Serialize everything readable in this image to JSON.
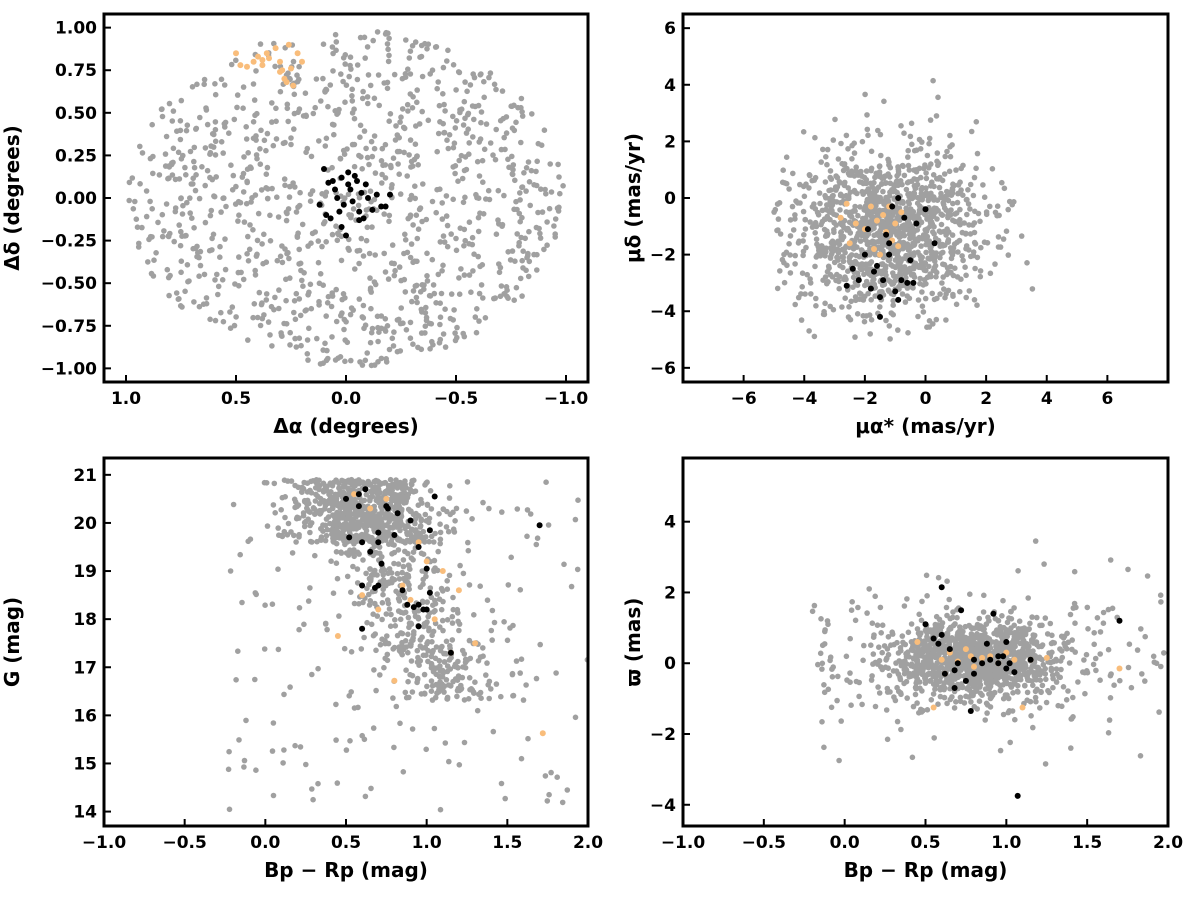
{
  "colors": {
    "field": "#a0a0a0",
    "member": "#000000",
    "group": "#f9bd7b"
  },
  "chart_data": [
    {
      "type": "scatter",
      "id": "sky",
      "xlabel": "Δα (degrees)",
      "ylabel": "Δδ (degrees)",
      "xlim": [
        1.1,
        -1.1
      ],
      "ylim": [
        -1.08,
        1.08
      ],
      "xticks": [
        1.0,
        0.5,
        0.0,
        -0.5,
        -1.0
      ],
      "xtick_labels": [
        "1.0",
        "0.5",
        "0.0",
        "−0.5",
        "−1.0"
      ],
      "yticks": [
        -1.0,
        -0.75,
        -0.5,
        -0.25,
        0.0,
        0.25,
        0.5,
        0.75,
        1.0
      ],
      "ytick_labels": [
        "−1.00",
        "−0.75",
        "−0.50",
        "−0.25",
        "0.00",
        "0.25",
        "0.50",
        "0.75",
        "1.00"
      ],
      "grid": false,
      "field_cloud": {
        "shape": "disk",
        "center": [
          0.0,
          0.0
        ],
        "radius": [
          0.99,
          0.99
        ],
        "count": 1100,
        "seed": 11
      },
      "series": [
        {
          "role": "group",
          "points": [
            [
              0.5,
              0.85
            ],
            [
              0.48,
              0.78
            ],
            [
              0.45,
              0.77
            ],
            [
              0.42,
              0.8
            ],
            [
              0.4,
              0.83
            ],
            [
              0.38,
              0.78
            ],
            [
              0.36,
              0.85
            ],
            [
              0.35,
              0.82
            ],
            [
              0.32,
              0.88
            ],
            [
              0.3,
              0.8
            ],
            [
              0.3,
              0.74
            ],
            [
              0.28,
              0.7
            ],
            [
              0.27,
              0.68
            ],
            [
              0.26,
              0.9
            ],
            [
              0.25,
              0.76
            ],
            [
              0.24,
              0.66
            ],
            [
              0.22,
              0.85
            ],
            [
              0.2,
              0.8
            ],
            [
              0.38,
              0.81
            ],
            [
              0.29,
              0.75
            ]
          ]
        },
        {
          "role": "member",
          "points": [
            [
              0.1,
              0.17
            ],
            [
              0.08,
              0.09
            ],
            [
              0.06,
              0.1
            ],
            [
              0.05,
              0.05
            ],
            [
              0.04,
              0.0
            ],
            [
              0.02,
              0.12
            ],
            [
              0.01,
              -0.04
            ],
            [
              -0.01,
              0.15
            ],
            [
              -0.02,
              0.05
            ],
            [
              -0.03,
              -0.02
            ],
            [
              -0.05,
              0.1
            ],
            [
              -0.06,
              -0.08
            ],
            [
              -0.07,
              0.03
            ],
            [
              -0.08,
              -0.12
            ],
            [
              -0.1,
              0.0
            ],
            [
              -0.12,
              -0.07
            ],
            [
              -0.14,
              0.02
            ],
            [
              -0.16,
              -0.05
            ],
            [
              -0.18,
              -0.05
            ],
            [
              -0.2,
              0.02
            ],
            [
              0.12,
              -0.04
            ],
            [
              0.09,
              -0.1
            ],
            [
              0.07,
              -0.12
            ],
            [
              0.03,
              -0.08
            ],
            [
              0.0,
              -0.22
            ],
            [
              -0.01,
              0.08
            ],
            [
              -0.04,
              0.13
            ],
            [
              0.02,
              -0.17
            ],
            [
              -0.06,
              -0.13
            ],
            [
              -0.09,
              0.08
            ]
          ]
        }
      ]
    },
    {
      "type": "scatter",
      "id": "proper-motion",
      "xlabel": "μα* (mas/yr)",
      "ylabel": "μδ (mas/yr)",
      "xlim": [
        -8.0,
        8.0
      ],
      "ylim": [
        -6.5,
        6.5
      ],
      "xticks": [
        -6,
        -4,
        -2,
        0,
        2,
        4,
        6
      ],
      "xtick_labels": [
        "−6",
        "−4",
        "−2",
        "0",
        "2",
        "4",
        "6"
      ],
      "yticks": [
        -6,
        -4,
        -2,
        0,
        2,
        4,
        6
      ],
      "ytick_labels": [
        "−6",
        "−4",
        "−2",
        "0",
        "2",
        "4",
        "6"
      ],
      "grid": false,
      "field_cloud": {
        "shape": "gauss-clipped",
        "center": [
          -1.3,
          -1.2
        ],
        "spread": [
          1.6,
          1.5
        ],
        "clip": [
          [
            -5.0,
            4.7
          ],
          [
            -5.0,
            4.7
          ]
        ],
        "count": 1300,
        "seed": 23
      },
      "series": [
        {
          "role": "group",
          "points": [
            [
              -2.8,
              -0.7
            ],
            [
              -2.6,
              -0.2
            ],
            [
              -2.3,
              -0.9
            ],
            [
              -2.0,
              -1.1
            ],
            [
              -1.8,
              -0.3
            ],
            [
              -1.6,
              -0.8
            ],
            [
              -1.4,
              -0.6
            ],
            [
              -1.3,
              -1.2
            ],
            [
              -1.2,
              -0.3
            ],
            [
              -1.1,
              -1.5
            ],
            [
              -1.0,
              -0.9
            ],
            [
              -0.9,
              -1.7
            ],
            [
              -2.5,
              -1.6
            ],
            [
              -1.7,
              -1.8
            ],
            [
              -0.8,
              -0.5
            ],
            [
              -1.5,
              -2.0
            ]
          ]
        },
        {
          "role": "member",
          "points": [
            [
              -2.6,
              -3.1
            ],
            [
              -2.4,
              -2.5
            ],
            [
              -2.2,
              -2.9
            ],
            [
              -2.0,
              -2.0
            ],
            [
              -1.8,
              -3.2
            ],
            [
              -1.7,
              -2.6
            ],
            [
              -1.6,
              -2.4
            ],
            [
              -1.5,
              -3.5
            ],
            [
              -1.5,
              -4.2
            ],
            [
              -1.4,
              -2.9
            ],
            [
              -1.3,
              -1.3
            ],
            [
              -1.2,
              -1.6
            ],
            [
              -1.1,
              -0.3
            ],
            [
              -1.0,
              -3.3
            ],
            [
              -0.9,
              -3.6
            ],
            [
              -0.8,
              -2.9
            ],
            [
              -0.7,
              -0.7
            ],
            [
              -0.6,
              -3.0
            ],
            [
              -0.5,
              -2.2
            ],
            [
              -0.3,
              -0.9
            ],
            [
              0.0,
              -0.4
            ],
            [
              0.3,
              -1.6
            ],
            [
              -0.9,
              0.0
            ],
            [
              -1.9,
              -1.1
            ],
            [
              -1.2,
              -2.0
            ],
            [
              -0.4,
              -3.0
            ]
          ]
        }
      ]
    },
    {
      "type": "scatter",
      "id": "cmd",
      "xlabel": "Bp − Rp (mag)",
      "ylabel": "G (mag)",
      "xlim": [
        -1.0,
        2.0
      ],
      "ylim": [
        13.7,
        21.35
      ],
      "xticks": [
        -1.0,
        -0.5,
        0.0,
        0.5,
        1.0,
        1.5,
        2.0
      ],
      "xtick_labels": [
        "−1.0",
        "−0.5",
        "0.0",
        "0.5",
        "1.0",
        "1.5",
        "2.0"
      ],
      "yticks": [
        14,
        15,
        16,
        17,
        18,
        19,
        20,
        21
      ],
      "ytick_labels": [
        "14",
        "15",
        "16",
        "17",
        "18",
        "19",
        "20",
        "21"
      ],
      "grid": false,
      "field_cloud": {
        "shape": "cmd-sequence",
        "count": 1250,
        "seed": 37
      },
      "series": [
        {
          "role": "group",
          "points": [
            [
              0.45,
              17.65
            ],
            [
              0.55,
              20.6
            ],
            [
              0.6,
              18.5
            ],
            [
              0.65,
              20.3
            ],
            [
              0.7,
              18.2
            ],
            [
              0.75,
              20.5
            ],
            [
              0.8,
              16.72
            ],
            [
              0.85,
              18.7
            ],
            [
              0.9,
              18.4
            ],
            [
              0.95,
              19.6
            ],
            [
              1.0,
              19.2
            ],
            [
              1.05,
              18.0
            ],
            [
              1.1,
              19.0
            ],
            [
              1.15,
              17.3
            ],
            [
              1.2,
              18.6
            ],
            [
              1.3,
              17.5
            ],
            [
              1.72,
              15.63
            ],
            [
              0.88,
              18.3
            ]
          ]
        },
        {
          "role": "member",
          "points": [
            [
              0.5,
              20.5
            ],
            [
              0.52,
              19.7
            ],
            [
              0.58,
              20.6
            ],
            [
              0.6,
              19.6
            ],
            [
              0.6,
              18.7
            ],
            [
              0.6,
              17.8
            ],
            [
              0.62,
              20.7
            ],
            [
              0.65,
              19.4
            ],
            [
              0.68,
              18.65
            ],
            [
              0.7,
              19.8
            ],
            [
              0.7,
              19.6
            ],
            [
              0.72,
              19.15
            ],
            [
              0.75,
              20.35
            ],
            [
              0.76,
              20.3
            ],
            [
              0.8,
              19.75
            ],
            [
              0.82,
              20.2
            ],
            [
              0.85,
              18.6
            ],
            [
              0.88,
              18.3
            ],
            [
              0.9,
              20.05
            ],
            [
              0.92,
              18.25
            ],
            [
              0.95,
              18.3
            ],
            [
              0.95,
              17.85
            ],
            [
              0.98,
              18.2
            ],
            [
              1.0,
              18.2
            ],
            [
              1.0,
              19.05
            ],
            [
              1.02,
              18.55
            ],
            [
              1.02,
              19.85
            ],
            [
              1.05,
              20.55
            ],
            [
              1.15,
              17.3
            ],
            [
              1.7,
              19.95
            ],
            [
              0.7,
              18.7
            ],
            [
              0.58,
              20.35
            ],
            [
              0.95,
              19.5
            ]
          ]
        }
      ]
    },
    {
      "type": "scatter",
      "id": "parallax",
      "xlabel": "Bp − Rp (mag)",
      "ylabel": "ϖ (mas)",
      "xlim": [
        -1.0,
        2.0
      ],
      "ylim": [
        -4.6,
        5.8
      ],
      "xticks": [
        -1.0,
        -0.5,
        0.0,
        0.5,
        1.0,
        1.5,
        2.0
      ],
      "xtick_labels": [
        "−1.0",
        "−0.5",
        "0.0",
        "0.5",
        "1.0",
        "1.5",
        "2.0"
      ],
      "yticks": [
        -4,
        -2,
        0,
        2,
        4
      ],
      "ytick_labels": [
        "−4",
        "−2",
        "0",
        "2",
        "4"
      ],
      "grid": false,
      "field_cloud": {
        "shape": "parallax-band",
        "count": 1400,
        "seed": 53
      },
      "series": [
        {
          "role": "group",
          "points": [
            [
              0.45,
              0.6
            ],
            [
              0.55,
              -1.25
            ],
            [
              0.6,
              0.1
            ],
            [
              0.65,
              0.3
            ],
            [
              0.7,
              0.05
            ],
            [
              0.75,
              0.4
            ],
            [
              0.8,
              -0.1
            ],
            [
              0.85,
              0.15
            ],
            [
              0.9,
              0.2
            ],
            [
              0.95,
              0.0
            ],
            [
              1.0,
              0.3
            ],
            [
              1.05,
              0.1
            ],
            [
              1.1,
              -1.25
            ],
            [
              1.15,
              0.1
            ],
            [
              1.25,
              0.15
            ],
            [
              1.7,
              -0.15
            ],
            [
              0.78,
              0.2
            ],
            [
              0.62,
              -0.3
            ]
          ]
        },
        {
          "role": "member",
          "points": [
            [
              0.5,
              1.1
            ],
            [
              0.55,
              0.7
            ],
            [
              0.58,
              0.55
            ],
            [
              0.6,
              0.8
            ],
            [
              0.6,
              2.15
            ],
            [
              0.62,
              -0.3
            ],
            [
              0.65,
              0.4
            ],
            [
              0.68,
              -0.7
            ],
            [
              0.7,
              0.0
            ],
            [
              0.72,
              1.5
            ],
            [
              0.75,
              -0.5
            ],
            [
              0.78,
              -1.35
            ],
            [
              0.8,
              0.1
            ],
            [
              0.85,
              0.0
            ],
            [
              0.88,
              0.55
            ],
            [
              0.9,
              0.1
            ],
            [
              0.92,
              1.4
            ],
            [
              0.95,
              0.0
            ],
            [
              0.95,
              0.2
            ],
            [
              1.0,
              -0.15
            ],
            [
              1.0,
              0.6
            ],
            [
              1.02,
              0.0
            ],
            [
              1.05,
              -0.25
            ],
            [
              1.07,
              -3.75
            ],
            [
              1.15,
              0.1
            ],
            [
              1.7,
              1.2
            ],
            [
              0.68,
              -0.2
            ],
            [
              0.8,
              -0.3
            ],
            [
              0.98,
              0.2
            ]
          ]
        }
      ]
    }
  ]
}
